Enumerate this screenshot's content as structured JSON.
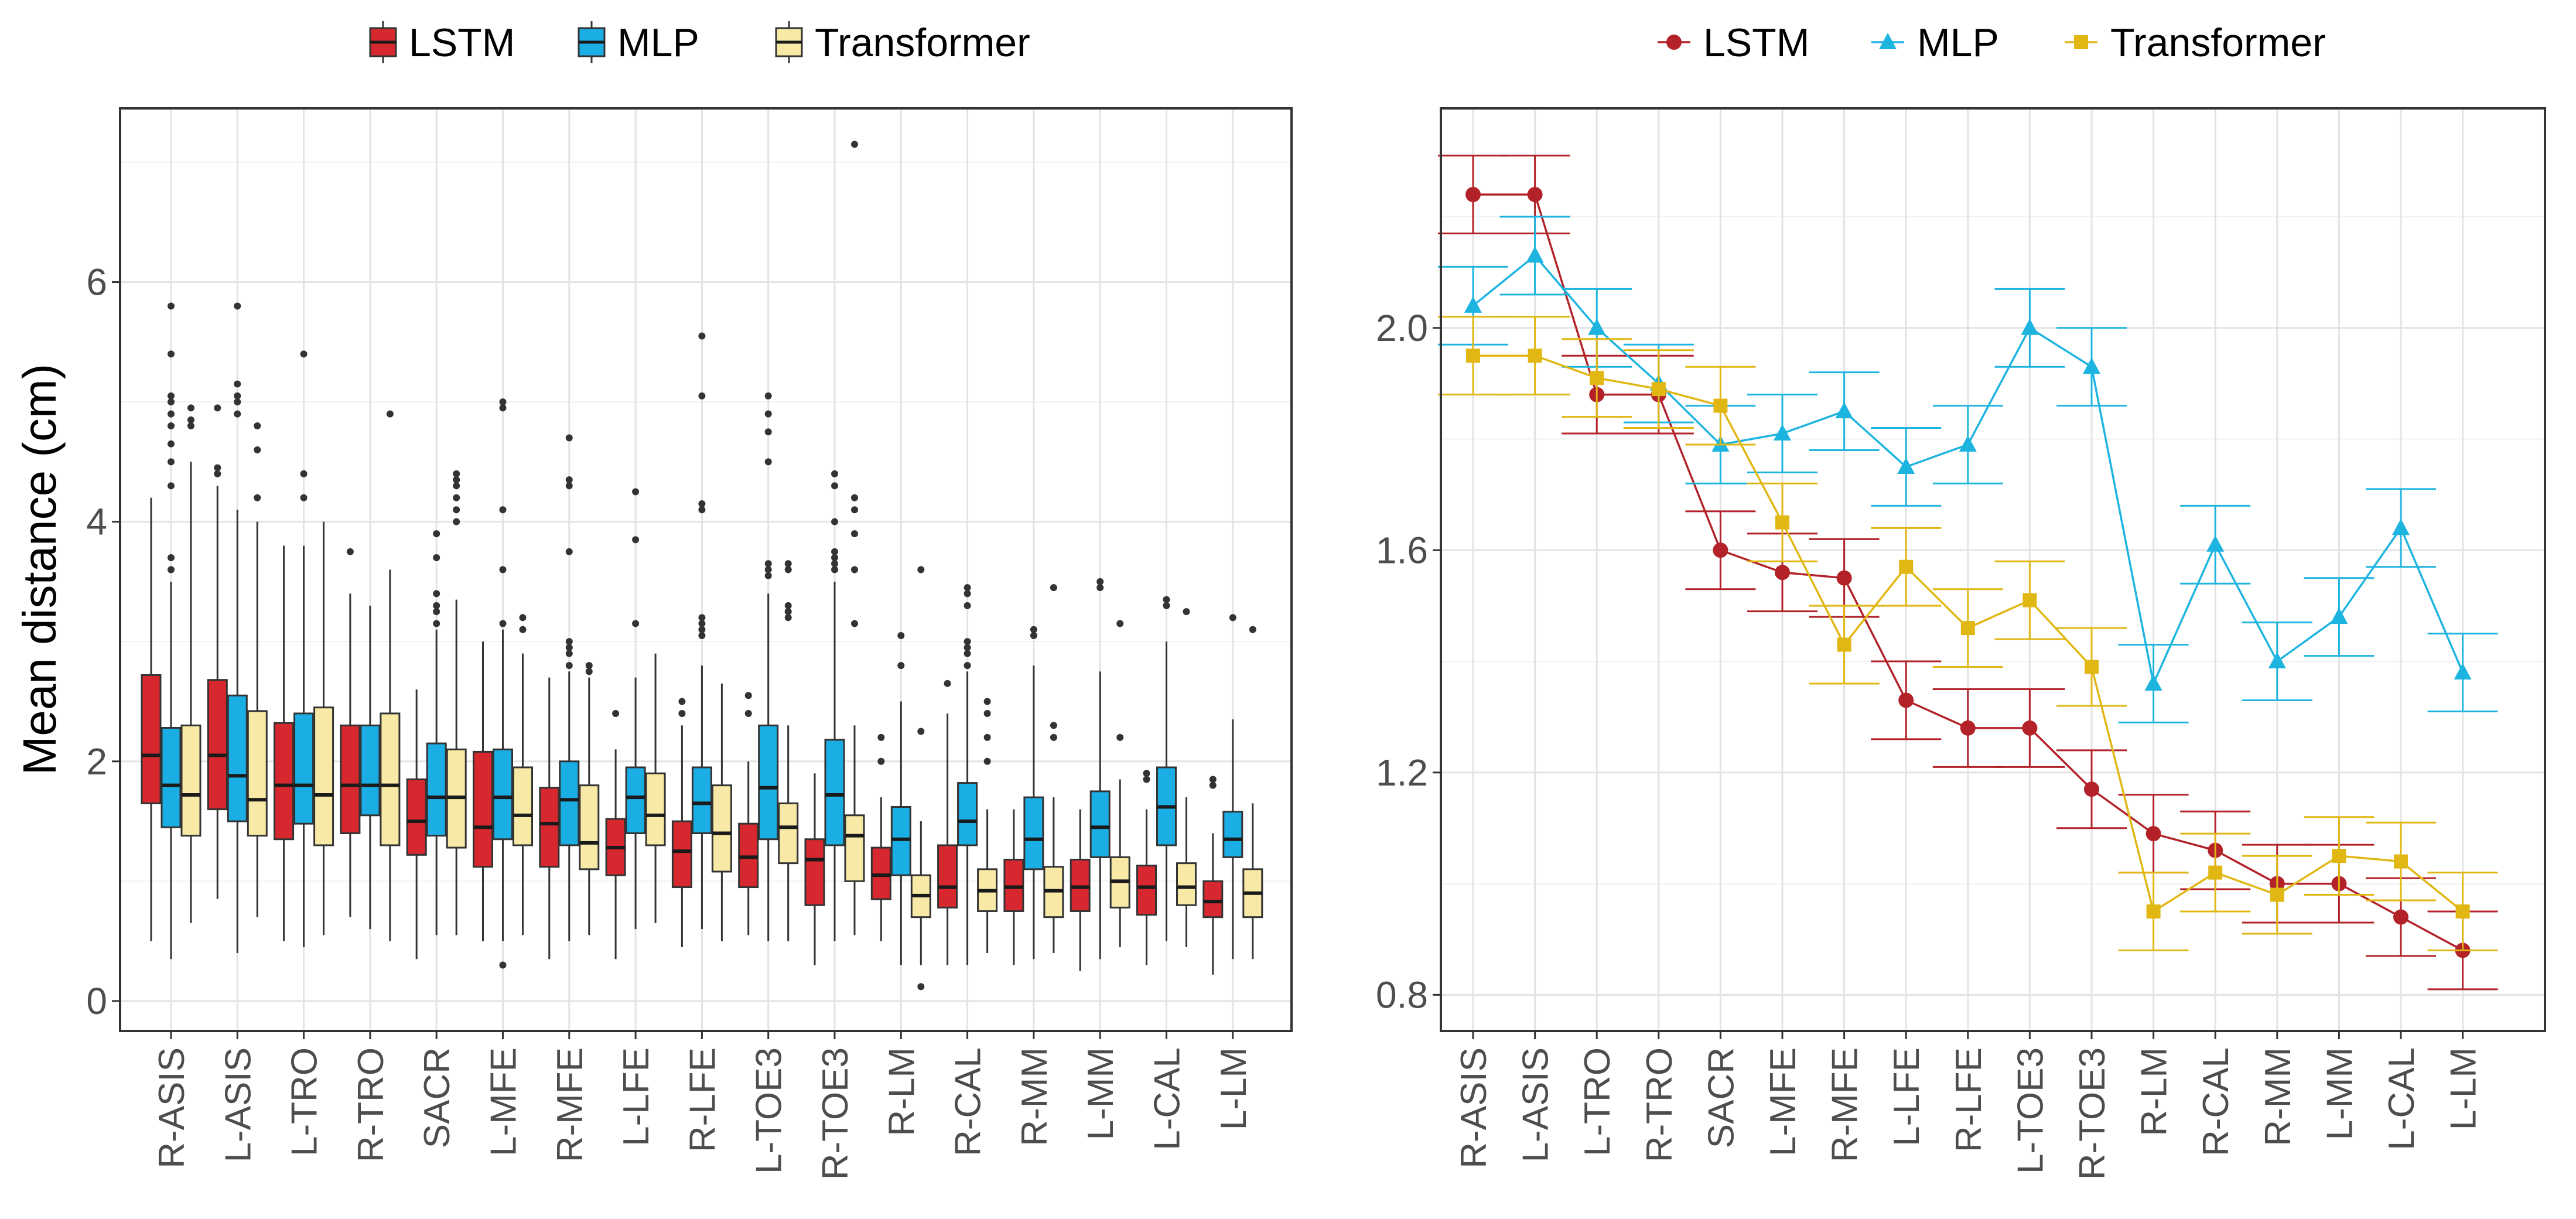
{
  "chart_data": [
    {
      "type": "boxplot",
      "ylabel": "Mean distance (cm)",
      "xlabel": "",
      "ylim": [
        -0.25,
        7.45
      ],
      "yticks": [
        0,
        2,
        4,
        6
      ],
      "grid": true,
      "legend": {
        "position": "top",
        "entries": [
          "LSTM",
          "MLP",
          "Transformer"
        ]
      },
      "categories": [
        "R-ASIS",
        "L-ASIS",
        "L-TRO",
        "R-TRO",
        "SACR",
        "L-MFE",
        "R-MFE",
        "L-LFE",
        "R-LFE",
        "L-TOE3",
        "R-TOE3",
        "R-LM",
        "R-CAL",
        "R-MM",
        "L-MM",
        "L-CAL",
        "L-LM"
      ],
      "series": [
        {
          "name": "LSTM",
          "color": "#d7282f",
          "boxes": [
            {
              "wl": 0.5,
              "q1": 1.65,
              "med": 2.05,
              "q3": 2.72,
              "wh": 4.2,
              "out": []
            },
            {
              "wl": 0.85,
              "q1": 1.6,
              "med": 2.05,
              "q3": 2.68,
              "wh": 4.3,
              "out": [
                4.95,
                4.4,
                4.45
              ]
            },
            {
              "wl": 0.5,
              "q1": 1.35,
              "med": 1.8,
              "q3": 2.32,
              "wh": 3.8,
              "out": []
            },
            {
              "wl": 0.7,
              "q1": 1.4,
              "med": 1.8,
              "q3": 2.3,
              "wh": 3.4,
              "out": [
                3.75
              ]
            },
            {
              "wl": 0.35,
              "q1": 1.22,
              "med": 1.5,
              "q3": 1.85,
              "wh": 2.6,
              "out": []
            },
            {
              "wl": 0.5,
              "q1": 1.12,
              "med": 1.45,
              "q3": 2.08,
              "wh": 3.0,
              "out": []
            },
            {
              "wl": 0.35,
              "q1": 1.12,
              "med": 1.48,
              "q3": 1.78,
              "wh": 2.7,
              "out": []
            },
            {
              "wl": 0.35,
              "q1": 1.05,
              "med": 1.28,
              "q3": 1.52,
              "wh": 2.1,
              "out": [
                2.4
              ]
            },
            {
              "wl": 0.45,
              "q1": 0.95,
              "med": 1.25,
              "q3": 1.5,
              "wh": 2.3,
              "out": [
                2.4,
                2.5
              ]
            },
            {
              "wl": 0.55,
              "q1": 0.95,
              "med": 1.2,
              "q3": 1.48,
              "wh": 2.0,
              "out": [
                2.4,
                2.55
              ]
            },
            {
              "wl": 0.3,
              "q1": 0.8,
              "med": 1.18,
              "q3": 1.35,
              "wh": 1.9,
              "out": []
            },
            {
              "wl": 0.5,
              "q1": 0.85,
              "med": 1.05,
              "q3": 1.28,
              "wh": 1.7,
              "out": [
                2.0,
                2.2
              ]
            },
            {
              "wl": 0.3,
              "q1": 0.78,
              "med": 0.95,
              "q3": 1.3,
              "wh": 2.4,
              "out": [
                2.65
              ]
            },
            {
              "wl": 0.3,
              "q1": 0.75,
              "med": 0.95,
              "q3": 1.18,
              "wh": 1.6,
              "out": []
            },
            {
              "wl": 0.25,
              "q1": 0.75,
              "med": 0.95,
              "q3": 1.18,
              "wh": 1.6,
              "out": []
            },
            {
              "wl": 0.3,
              "q1": 0.72,
              "med": 0.95,
              "q3": 1.13,
              "wh": 1.6,
              "out": [
                1.85,
                1.9
              ]
            },
            {
              "wl": 0.22,
              "q1": 0.7,
              "med": 0.83,
              "q3": 1.0,
              "wh": 1.4,
              "out": [
                1.8,
                1.85
              ]
            }
          ]
        },
        {
          "name": "MLP",
          "color": "#1aaee5",
          "boxes": [
            {
              "wl": 0.35,
              "q1": 1.45,
              "med": 1.8,
              "q3": 2.28,
              "wh": 3.5,
              "out": [
                3.6,
                3.7,
                4.3,
                4.5,
                4.65,
                4.8,
                4.9,
                5.0,
                5.05,
                5.4,
                5.8
              ]
            },
            {
              "wl": 0.4,
              "q1": 1.5,
              "med": 1.88,
              "q3": 2.55,
              "wh": 4.1,
              "out": [
                4.9,
                5.0,
                5.05,
                5.15,
                5.8
              ]
            },
            {
              "wl": 0.45,
              "q1": 1.48,
              "med": 1.8,
              "q3": 2.4,
              "wh": 3.8,
              "out": [
                4.2,
                4.4,
                5.4
              ]
            },
            {
              "wl": 0.6,
              "q1": 1.55,
              "med": 1.8,
              "q3": 2.3,
              "wh": 3.3,
              "out": []
            },
            {
              "wl": 0.55,
              "q1": 1.38,
              "med": 1.7,
              "q3": 2.15,
              "wh": 3.1,
              "out": [
                3.15,
                3.25,
                3.3,
                3.4,
                3.7,
                3.9
              ]
            },
            {
              "wl": 0.5,
              "q1": 1.35,
              "med": 1.7,
              "q3": 2.1,
              "wh": 3.1,
              "out": [
                3.15,
                3.6,
                4.1,
                4.95,
                5.0,
                0.3
              ]
            },
            {
              "wl": 0.5,
              "q1": 1.3,
              "med": 1.68,
              "q3": 2.0,
              "wh": 2.75,
              "out": [
                2.8,
                2.9,
                2.95,
                3.0,
                3.75,
                4.3,
                4.35,
                4.7
              ]
            },
            {
              "wl": 0.6,
              "q1": 1.4,
              "med": 1.7,
              "q3": 1.95,
              "wh": 2.7,
              "out": [
                3.15,
                3.85,
                4.25
              ]
            },
            {
              "wl": 0.6,
              "q1": 1.4,
              "med": 1.65,
              "q3": 1.95,
              "wh": 2.8,
              "out": [
                3.05,
                3.1,
                3.15,
                3.2,
                4.1,
                4.15,
                5.05,
                5.55
              ]
            },
            {
              "wl": 0.5,
              "q1": 1.35,
              "med": 1.78,
              "q3": 2.3,
              "wh": 3.4,
              "out": [
                3.55,
                3.6,
                3.65,
                4.5,
                4.75,
                4.9,
                5.05
              ]
            },
            {
              "wl": 0.5,
              "q1": 1.3,
              "med": 1.72,
              "q3": 2.18,
              "wh": 3.5,
              "out": [
                3.6,
                3.65,
                3.7,
                3.75,
                4.0,
                4.3,
                4.4
              ]
            },
            {
              "wl": 0.3,
              "q1": 1.05,
              "med": 1.35,
              "q3": 1.62,
              "wh": 2.5,
              "out": [
                2.8,
                3.05
              ]
            },
            {
              "wl": 0.3,
              "q1": 1.3,
              "med": 1.5,
              "q3": 1.82,
              "wh": 2.75,
              "out": [
                2.8,
                2.9,
                2.95,
                3.0,
                3.3,
                3.4,
                3.45
              ]
            },
            {
              "wl": 0.35,
              "q1": 1.1,
              "med": 1.35,
              "q3": 1.7,
              "wh": 2.8,
              "out": [
                3.05,
                3.1
              ]
            },
            {
              "wl": 0.35,
              "q1": 1.2,
              "med": 1.45,
              "q3": 1.75,
              "wh": 2.75,
              "out": [
                3.45,
                3.5
              ]
            },
            {
              "wl": 0.5,
              "q1": 1.3,
              "med": 1.62,
              "q3": 1.95,
              "wh": 3.0,
              "out": [
                3.3,
                3.35
              ]
            },
            {
              "wl": 0.35,
              "q1": 1.2,
              "med": 1.35,
              "q3": 1.58,
              "wh": 2.35,
              "out": [
                3.2
              ]
            }
          ]
        },
        {
          "name": "Transformer",
          "color": "#f8eaa6",
          "boxes": [
            {
              "wl": 0.65,
              "q1": 1.38,
              "med": 1.72,
              "q3": 2.3,
              "wh": 4.5,
              "out": [
                4.8,
                4.85,
                4.95
              ]
            },
            {
              "wl": 0.7,
              "q1": 1.38,
              "med": 1.68,
              "q3": 2.42,
              "wh": 4.0,
              "out": [
                4.2,
                4.6,
                4.8
              ]
            },
            {
              "wl": 0.55,
              "q1": 1.3,
              "med": 1.72,
              "q3": 2.45,
              "wh": 4.0,
              "out": []
            },
            {
              "wl": 0.5,
              "q1": 1.3,
              "med": 1.8,
              "q3": 2.4,
              "wh": 3.6,
              "out": [
                4.9
              ]
            },
            {
              "wl": 0.55,
              "q1": 1.28,
              "med": 1.7,
              "q3": 2.1,
              "wh": 3.35,
              "out": [
                4.0,
                4.1,
                4.2,
                4.3,
                4.35,
                4.4
              ]
            },
            {
              "wl": 0.55,
              "q1": 1.3,
              "med": 1.55,
              "q3": 1.95,
              "wh": 2.9,
              "out": [
                3.1,
                3.2
              ]
            },
            {
              "wl": 0.55,
              "q1": 1.1,
              "med": 1.32,
              "q3": 1.8,
              "wh": 2.7,
              "out": [
                2.75,
                2.8
              ]
            },
            {
              "wl": 0.65,
              "q1": 1.3,
              "med": 1.55,
              "q3": 1.9,
              "wh": 2.9,
              "out": []
            },
            {
              "wl": 0.5,
              "q1": 1.08,
              "med": 1.4,
              "q3": 1.8,
              "wh": 2.65,
              "out": []
            },
            {
              "wl": 0.5,
              "q1": 1.15,
              "med": 1.45,
              "q3": 1.65,
              "wh": 2.3,
              "out": [
                3.2,
                3.25,
                3.3,
                3.6,
                3.65
              ]
            },
            {
              "wl": 0.55,
              "q1": 1.0,
              "med": 1.38,
              "q3": 1.55,
              "wh": 2.3,
              "out": [
                3.15,
                3.6,
                3.9,
                4.1,
                4.2,
                7.15
              ]
            },
            {
              "wl": 0.3,
              "q1": 0.7,
              "med": 0.88,
              "q3": 1.05,
              "wh": 1.5,
              "out": [
                0.12,
                2.25,
                3.6
              ]
            },
            {
              "wl": 0.4,
              "q1": 0.75,
              "med": 0.92,
              "q3": 1.1,
              "wh": 1.6,
              "out": [
                2.0,
                2.2,
                2.4,
                2.5
              ]
            },
            {
              "wl": 0.4,
              "q1": 0.7,
              "med": 0.92,
              "q3": 1.12,
              "wh": 1.7,
              "out": [
                2.2,
                2.3,
                3.45
              ]
            },
            {
              "wl": 0.45,
              "q1": 0.78,
              "med": 1.0,
              "q3": 1.2,
              "wh": 1.85,
              "out": [
                2.2,
                3.15
              ]
            },
            {
              "wl": 0.45,
              "q1": 0.8,
              "med": 0.95,
              "q3": 1.15,
              "wh": 1.7,
              "out": [
                3.25
              ]
            },
            {
              "wl": 0.35,
              "q1": 0.7,
              "med": 0.9,
              "q3": 1.1,
              "wh": 1.65,
              "out": [
                3.1
              ]
            }
          ]
        }
      ]
    },
    {
      "type": "line",
      "ylim": [
        0.735,
        2.395
      ],
      "yticks": [
        0.8,
        1.2,
        1.6,
        2.0
      ],
      "ytick_labels": [
        "0.8",
        "1.2",
        "1.6",
        "2.0"
      ],
      "grid": true,
      "error_bars": true,
      "legend": {
        "position": "top",
        "entries": [
          "LSTM",
          "MLP",
          "Transformer"
        ]
      },
      "categories": [
        "R-ASIS",
        "L-ASIS",
        "L-TRO",
        "R-TRO",
        "SACR",
        "L-MFE",
        "R-MFE",
        "L-LFE",
        "R-LFE",
        "L-TOE3",
        "R-TOE3",
        "R-LM",
        "R-CAL",
        "R-MM",
        "L-MM",
        "L-CAL",
        "L-LM"
      ],
      "series": [
        {
          "name": "LSTM",
          "color": "#b22228",
          "marker": "circle",
          "values": [
            2.24,
            2.24,
            1.88,
            1.88,
            1.6,
            1.56,
            1.55,
            1.33,
            1.28,
            1.28,
            1.17,
            1.09,
            1.06,
            1.0,
            1.0,
            0.94,
            0.88
          ],
          "errors": [
            0.07,
            0.07,
            0.07,
            0.07,
            0.07,
            0.07,
            0.07,
            0.07,
            0.07,
            0.07,
            0.07,
            0.07,
            0.07,
            0.07,
            0.07,
            0.07,
            0.07
          ]
        },
        {
          "name": "MLP",
          "color": "#1eb4e0",
          "marker": "triangle",
          "values": [
            2.04,
            2.13,
            2.0,
            1.9,
            1.79,
            1.81,
            1.85,
            1.75,
            1.79,
            2.0,
            1.93,
            1.36,
            1.61,
            1.4,
            1.48,
            1.64,
            1.38
          ],
          "errors": [
            0.07,
            0.07,
            0.07,
            0.07,
            0.07,
            0.07,
            0.07,
            0.07,
            0.07,
            0.07,
            0.07,
            0.07,
            0.07,
            0.07,
            0.07,
            0.07,
            0.07
          ]
        },
        {
          "name": "Transformer",
          "color": "#e0b713",
          "marker": "square",
          "values": [
            1.95,
            1.95,
            1.91,
            1.89,
            1.86,
            1.65,
            1.43,
            1.57,
            1.46,
            1.51,
            1.39,
            0.95,
            1.02,
            0.98,
            1.05,
            1.04,
            0.95
          ],
          "errors": [
            0.07,
            0.07,
            0.07,
            0.07,
            0.07,
            0.07,
            0.07,
            0.07,
            0.07,
            0.07,
            0.07,
            0.07,
            0.07,
            0.07,
            0.07,
            0.07,
            0.07
          ]
        }
      ]
    }
  ]
}
